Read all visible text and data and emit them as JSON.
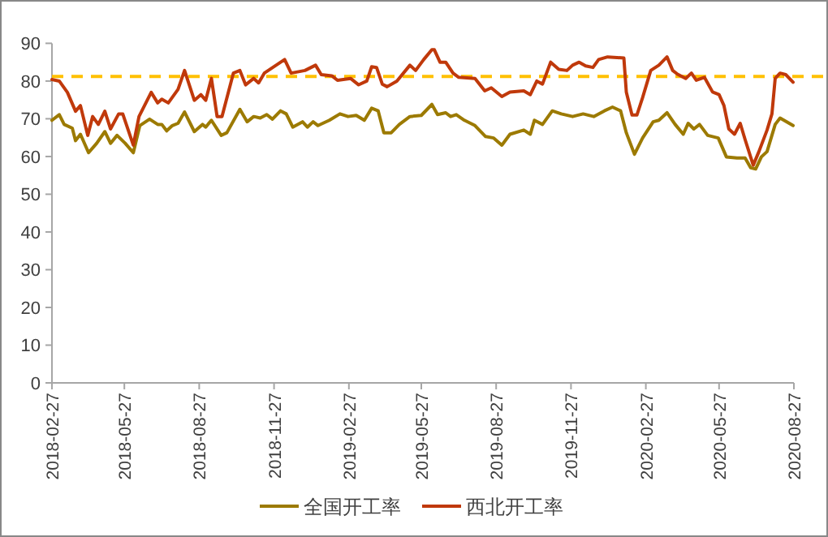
{
  "chart_data": {
    "type": "line",
    "xlim": [
      "2018-02-27",
      "2020-08-27"
    ],
    "xticks": [
      "2018-02-27",
      "2018-05-27",
      "2018-08-27",
      "2018-11-27",
      "2019-02-27",
      "2019-05-27",
      "2019-08-27",
      "2019-11-27",
      "2020-02-27",
      "2020-05-27",
      "2020-08-27"
    ],
    "ylim": [
      0,
      90
    ],
    "yticks": [
      0,
      10,
      20,
      30,
      40,
      50,
      60,
      70,
      80,
      90
    ],
    "grid": false,
    "legend": "bottom",
    "marker": "none",
    "line_style": "solid",
    "ref_lines": [
      {
        "axis": "y",
        "value": 81.2,
        "color": "#ffc000",
        "line_style": "dashed"
      }
    ],
    "series": [
      {
        "name": "全国开工率",
        "color": "#9c7a00",
        "x": [
          "2018-02-27",
          "2018-03-08",
          "2018-03-14",
          "2018-03-24",
          "2018-03-28",
          "2018-04-03",
          "2018-04-13",
          "2018-04-23",
          "2018-05-03",
          "2018-05-10",
          "2018-05-18",
          "2018-05-28",
          "2018-06-07",
          "2018-06-15",
          "2018-06-27",
          "2018-07-07",
          "2018-07-12",
          "2018-07-18",
          "2018-07-25",
          "2018-08-01",
          "2018-08-09",
          "2018-08-21",
          "2018-08-31",
          "2018-09-04",
          "2018-09-11",
          "2018-09-23",
          "2018-09-30",
          "2018-10-16",
          "2018-10-25",
          "2018-11-02",
          "2018-11-10",
          "2018-11-18",
          "2018-11-25",
          "2018-12-05",
          "2018-12-12",
          "2018-12-20",
          "2019-01-01",
          "2019-01-07",
          "2019-01-14",
          "2019-01-20",
          "2019-02-03",
          "2019-02-16",
          "2019-02-26",
          "2019-03-08",
          "2019-03-18",
          "2019-03-27",
          "2019-04-04",
          "2019-04-11",
          "2019-04-20",
          "2019-04-30",
          "2019-05-13",
          "2019-05-27",
          "2019-06-09",
          "2019-06-16",
          "2019-06-26",
          "2019-07-02",
          "2019-07-09",
          "2019-07-19",
          "2019-08-01",
          "2019-08-14",
          "2019-08-24",
          "2019-09-03",
          "2019-09-13",
          "2019-09-30",
          "2019-10-08",
          "2019-10-13",
          "2019-10-23",
          "2019-11-04",
          "2019-11-15",
          "2019-11-29",
          "2019-12-12",
          "2019-12-25",
          "2020-01-07",
          "2020-01-17",
          "2020-01-27",
          "2020-02-03",
          "2020-02-13",
          "2020-02-23",
          "2020-03-07",
          "2020-03-14",
          "2020-03-24",
          "2020-04-03",
          "2020-04-13",
          "2020-04-19",
          "2020-04-26",
          "2020-05-03",
          "2020-05-13",
          "2020-05-26",
          "2020-06-05",
          "2020-06-18",
          "2020-06-28",
          "2020-07-05",
          "2020-07-11",
          "2020-07-18",
          "2020-07-25",
          "2020-08-04",
          "2020-08-10",
          "2020-08-26"
        ],
        "values": [
          69.6,
          71.1,
          68.5,
          67.5,
          64.2,
          65.9,
          61,
          63.5,
          66.6,
          63.5,
          65.6,
          63.5,
          61,
          68.2,
          69.9,
          68.5,
          68.5,
          66.8,
          68.2,
          68.8,
          71.8,
          66.6,
          68.5,
          67.8,
          69.6,
          65.6,
          66.3,
          72.5,
          69.2,
          70.6,
          70.2,
          71.1,
          69.9,
          72.1,
          71.3,
          67.8,
          69.2,
          67.8,
          69.2,
          68.2,
          69.6,
          71.3,
          70.6,
          70.9,
          69.6,
          72.8,
          72.1,
          66.3,
          66.3,
          68.5,
          70.6,
          70.9,
          73.8,
          71.1,
          71.6,
          70.6,
          71.1,
          69.6,
          68.2,
          65.3,
          64.9,
          63,
          65.9,
          67,
          65.9,
          69.6,
          68.5,
          72.1,
          71.3,
          70.6,
          71.3,
          70.6,
          72.1,
          73.1,
          72.1,
          66.3,
          60.6,
          64.9,
          69.2,
          69.6,
          71.6,
          68.5,
          65.9,
          68.8,
          67.3,
          68.5,
          65.6,
          64.9,
          59.9,
          59.6,
          59.6,
          57,
          56.7,
          59.9,
          61.3,
          68.5,
          70.2,
          68.2
        ]
      },
      {
        "name": "西北开工率",
        "color": "#c0390b",
        "x": [
          "2018-02-27",
          "2018-03-08",
          "2018-03-18",
          "2018-03-28",
          "2018-04-03",
          "2018-04-12",
          "2018-04-18",
          "2018-04-25",
          "2018-05-03",
          "2018-05-10",
          "2018-05-20",
          "2018-05-25",
          "2018-06-07",
          "2018-06-14",
          "2018-06-29",
          "2018-07-07",
          "2018-07-12",
          "2018-07-20",
          "2018-08-01",
          "2018-08-09",
          "2018-08-21",
          "2018-08-29",
          "2018-09-04",
          "2018-09-11",
          "2018-09-18",
          "2018-09-24",
          "2018-10-08",
          "2018-10-16",
          "2018-10-23",
          "2018-11-02",
          "2018-11-08",
          "2018-11-15",
          "2018-12-10",
          "2018-12-18",
          "2019-01-04",
          "2019-01-17",
          "2019-01-24",
          "2019-02-06",
          "2019-02-13",
          "2019-03-01",
          "2019-03-11",
          "2019-03-21",
          "2019-03-27",
          "2019-04-02",
          "2019-04-09",
          "2019-04-15",
          "2019-04-27",
          "2019-05-13",
          "2019-05-20",
          "2019-05-30",
          "2019-06-09",
          "2019-06-12",
          "2019-06-19",
          "2019-06-26",
          "2019-07-05",
          "2019-07-12",
          "2019-08-01",
          "2019-08-13",
          "2019-08-21",
          "2019-09-03",
          "2019-09-13",
          "2019-09-30",
          "2019-10-08",
          "2019-10-16",
          "2019-10-23",
          "2019-11-02",
          "2019-11-12",
          "2019-11-22",
          "2019-11-29",
          "2019-12-07",
          "2019-12-15",
          "2019-12-24",
          "2019-12-31",
          "2020-01-11",
          "2020-01-31",
          "2020-02-03",
          "2020-02-10",
          "2020-02-16",
          "2020-02-23",
          "2020-03-04",
          "2020-03-14",
          "2020-03-24",
          "2020-03-31",
          "2020-04-06",
          "2020-04-16",
          "2020-04-23",
          "2020-04-29",
          "2020-05-09",
          "2020-05-19",
          "2020-05-27",
          "2020-06-02",
          "2020-06-08",
          "2020-06-15",
          "2020-06-22",
          "2020-06-28",
          "2020-07-08",
          "2020-07-15",
          "2020-07-25",
          "2020-07-31",
          "2020-08-04",
          "2020-08-10",
          "2020-08-17",
          "2020-08-26"
        ],
        "values": [
          80.4,
          80,
          77,
          72,
          73.5,
          65.6,
          70.6,
          68.5,
          72,
          67.3,
          71.3,
          71.3,
          63,
          70.6,
          77,
          74.2,
          75.2,
          74.2,
          77.8,
          82.8,
          74.9,
          76.4,
          74.9,
          80.7,
          70.6,
          70.6,
          82.1,
          82.8,
          79,
          80.7,
          79.5,
          82.1,
          85.7,
          82.1,
          82.8,
          84.2,
          81.7,
          81.4,
          80.2,
          80.7,
          79,
          80,
          83.8,
          83.6,
          79.2,
          78.5,
          80,
          84.2,
          82.8,
          85.7,
          88.3,
          88.3,
          85,
          85,
          82.1,
          81,
          80.7,
          77.4,
          78.2,
          75.9,
          77.1,
          77.4,
          76.4,
          80,
          79.2,
          85,
          83.1,
          82.8,
          84.2,
          85,
          84,
          83.6,
          85.7,
          86.4,
          86.1,
          77.1,
          71,
          71,
          75.6,
          82.8,
          84.2,
          86.4,
          82.8,
          81.8,
          80.7,
          82.1,
          80.2,
          81,
          77.1,
          76.4,
          73.5,
          67.3,
          65.9,
          68.8,
          64.5,
          57.7,
          61.3,
          67,
          71.3,
          80.7,
          82.1,
          81.7,
          79.7
        ]
      }
    ]
  }
}
